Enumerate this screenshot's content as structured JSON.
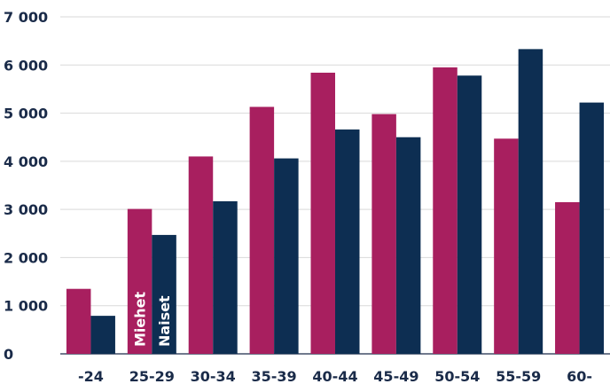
{
  "chart_data": {
    "type": "bar",
    "title": "",
    "xlabel": "",
    "ylabel": "",
    "ylim": [
      0,
      7000
    ],
    "yticks": [
      0,
      1000,
      2000,
      3000,
      4000,
      5000,
      6000,
      7000
    ],
    "ytick_labels": [
      "0",
      "1 000",
      "2 000",
      "3 000",
      "4 000",
      "5 000",
      "6 000",
      "7 000"
    ],
    "grid": true,
    "legend": "inside-bars",
    "categories": [
      "-24",
      "25-29",
      "30-34",
      "35-39",
      "40-44",
      "45-49",
      "50-54",
      "55-59",
      "60-"
    ],
    "series": [
      {
        "name": "Miehet",
        "color": "#a81f5f",
        "values": [
          1350,
          3010,
          4100,
          5130,
          5840,
          4980,
          5950,
          4470,
          3150
        ]
      },
      {
        "name": "Naiset",
        "color": "#0d2e52",
        "values": [
          790,
          2470,
          3170,
          4060,
          4660,
          4500,
          5780,
          6330,
          5220
        ]
      }
    ]
  }
}
